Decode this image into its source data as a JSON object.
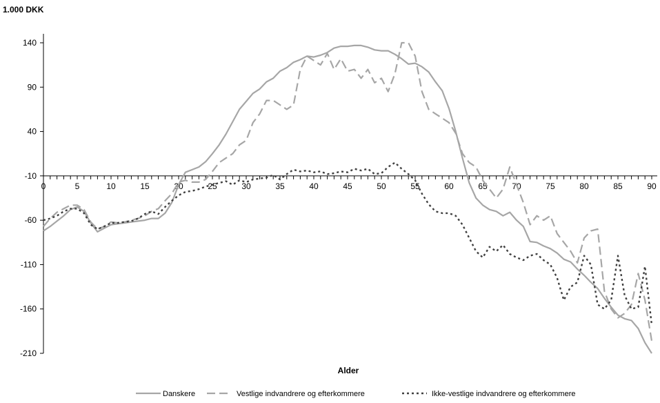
{
  "chart_data": {
    "type": "line",
    "unit_label": "1.000 DKK",
    "xlabel": "Alder",
    "ylabel": "",
    "xlim": [
      0,
      90
    ],
    "ylim": [
      -210,
      160
    ],
    "yticks": [
      140,
      90,
      40,
      -10,
      -60,
      -110,
      -160,
      -210
    ],
    "xticks": [
      0,
      5,
      10,
      15,
      20,
      25,
      30,
      35,
      40,
      45,
      50,
      55,
      60,
      65,
      70,
      75,
      80,
      85,
      90
    ],
    "xtick_labels": [
      "0",
      "5",
      "10",
      "15",
      "20",
      "25",
      "30",
      "35",
      "40",
      "45",
      "50",
      "55",
      "60",
      "65",
      "70",
      "75",
      "80",
      "85",
      "90"
    ],
    "ytick_labels": [
      "140",
      "90",
      "40",
      "-10",
      "-60",
      "-110",
      "-160",
      "-210"
    ],
    "grid": false,
    "legend_position": "bottom",
    "series": [
      {
        "name": "Danskere",
        "color": "#a6a6a6",
        "dash": "solid",
        "points": [
          [
            0,
            -72
          ],
          [
            1,
            -67
          ],
          [
            2,
            -61
          ],
          [
            3,
            -55
          ],
          [
            4,
            -48
          ],
          [
            5,
            -45
          ],
          [
            6,
            -50
          ],
          [
            7,
            -63
          ],
          [
            8,
            -73
          ],
          [
            9,
            -69
          ],
          [
            10,
            -65
          ],
          [
            11,
            -64
          ],
          [
            12,
            -63
          ],
          [
            13,
            -62
          ],
          [
            14,
            -61
          ],
          [
            15,
            -60
          ],
          [
            16,
            -58
          ],
          [
            17,
            -58
          ],
          [
            18,
            -52
          ],
          [
            19,
            -40
          ],
          [
            20,
            -20
          ],
          [
            21,
            -6
          ],
          [
            22,
            -3
          ],
          [
            23,
            0
          ],
          [
            24,
            6
          ],
          [
            25,
            15
          ],
          [
            26,
            25
          ],
          [
            27,
            37
          ],
          [
            28,
            51
          ],
          [
            29,
            65
          ],
          [
            30,
            74
          ],
          [
            31,
            83
          ],
          [
            32,
            88
          ],
          [
            33,
            96
          ],
          [
            34,
            100
          ],
          [
            35,
            108
          ],
          [
            36,
            112
          ],
          [
            37,
            118
          ],
          [
            38,
            121
          ],
          [
            39,
            125
          ],
          [
            40,
            124
          ],
          [
            41,
            126
          ],
          [
            42,
            129
          ],
          [
            43,
            134
          ],
          [
            44,
            136
          ],
          [
            45,
            136
          ],
          [
            46,
            137
          ],
          [
            47,
            137
          ],
          [
            48,
            135
          ],
          [
            49,
            132
          ],
          [
            50,
            131
          ],
          [
            51,
            131
          ],
          [
            52,
            127
          ],
          [
            53,
            122
          ],
          [
            54,
            116
          ],
          [
            55,
            117
          ],
          [
            56,
            113
          ],
          [
            57,
            107
          ],
          [
            58,
            96
          ],
          [
            59,
            86
          ],
          [
            60,
            66
          ],
          [
            61,
            40
          ],
          [
            62,
            10
          ],
          [
            63,
            -18
          ],
          [
            64,
            -35
          ],
          [
            65,
            -43
          ],
          [
            66,
            -48
          ],
          [
            67,
            -50
          ],
          [
            68,
            -55
          ],
          [
            69,
            -51
          ],
          [
            70,
            -60
          ],
          [
            71,
            -67
          ],
          [
            72,
            -84
          ],
          [
            73,
            -85
          ],
          [
            74,
            -89
          ],
          [
            75,
            -92
          ],
          [
            76,
            -97
          ],
          [
            77,
            -104
          ],
          [
            78,
            -107
          ],
          [
            79,
            -115
          ],
          [
            80,
            -122
          ],
          [
            81,
            -130
          ],
          [
            82,
            -137
          ],
          [
            83,
            -148
          ],
          [
            84,
            -158
          ],
          [
            85,
            -167
          ],
          [
            86,
            -171
          ],
          [
            87,
            -173
          ],
          [
            88,
            -182
          ],
          [
            89,
            -198
          ],
          [
            90,
            -210
          ]
        ]
      },
      {
        "name": "Vestlige indvandrere og efterkommere",
        "color": "#a6a6a6",
        "dash": "long",
        "points": [
          [
            0,
            -67
          ],
          [
            1,
            -58
          ],
          [
            2,
            -51
          ],
          [
            3,
            -47
          ],
          [
            4,
            -43
          ],
          [
            5,
            -43
          ],
          [
            6,
            -48
          ],
          [
            7,
            -62
          ],
          [
            8,
            -70
          ],
          [
            9,
            -67
          ],
          [
            10,
            -62
          ],
          [
            11,
            -63
          ],
          [
            12,
            -62
          ],
          [
            13,
            -60
          ],
          [
            14,
            -58
          ],
          [
            15,
            -55
          ],
          [
            16,
            -50
          ],
          [
            17,
            -47
          ],
          [
            18,
            -38
          ],
          [
            19,
            -30
          ],
          [
            20,
            -17
          ],
          [
            21,
            -15
          ],
          [
            22,
            -17
          ],
          [
            23,
            -17
          ],
          [
            24,
            -14
          ],
          [
            25,
            -5
          ],
          [
            26,
            5
          ],
          [
            27,
            10
          ],
          [
            28,
            15
          ],
          [
            29,
            25
          ],
          [
            30,
            30
          ],
          [
            31,
            50
          ],
          [
            32,
            60
          ],
          [
            33,
            75
          ],
          [
            34,
            75
          ],
          [
            35,
            70
          ],
          [
            36,
            65
          ],
          [
            37,
            70
          ],
          [
            38,
            110
          ],
          [
            39,
            125
          ],
          [
            40,
            120
          ],
          [
            41,
            115
          ],
          [
            42,
            128
          ],
          [
            43,
            110
          ],
          [
            44,
            122
          ],
          [
            45,
            108
          ],
          [
            46,
            110
          ],
          [
            47,
            100
          ],
          [
            48,
            110
          ],
          [
            49,
            95
          ],
          [
            50,
            100
          ],
          [
            51,
            85
          ],
          [
            52,
            105
          ],
          [
            53,
            140
          ],
          [
            54,
            140
          ],
          [
            55,
            125
          ],
          [
            56,
            85
          ],
          [
            57,
            65
          ],
          [
            58,
            60
          ],
          [
            59,
            55
          ],
          [
            60,
            50
          ],
          [
            61,
            38
          ],
          [
            62,
            15
          ],
          [
            63,
            5
          ],
          [
            64,
            0
          ],
          [
            65,
            -15
          ],
          [
            66,
            -25
          ],
          [
            67,
            -35
          ],
          [
            68,
            -25
          ],
          [
            69,
            0
          ],
          [
            70,
            -20
          ],
          [
            71,
            -40
          ],
          [
            72,
            -65
          ],
          [
            73,
            -55
          ],
          [
            74,
            -60
          ],
          [
            75,
            -55
          ],
          [
            76,
            -75
          ],
          [
            77,
            -85
          ],
          [
            78,
            -95
          ],
          [
            79,
            -108
          ],
          [
            80,
            -80
          ],
          [
            81,
            -72
          ],
          [
            82,
            -70
          ],
          [
            83,
            -140
          ],
          [
            84,
            -160
          ],
          [
            85,
            -170
          ],
          [
            86,
            -165
          ],
          [
            87,
            -155
          ],
          [
            88,
            -120
          ],
          [
            89,
            -150
          ],
          [
            90,
            -196
          ]
        ]
      },
      {
        "name": "Ikke-vestlige indvandrere og efterkommere",
        "color": "#404040",
        "dash": "short",
        "points": [
          [
            0,
            -60
          ],
          [
            1,
            -58
          ],
          [
            2,
            -55
          ],
          [
            3,
            -50
          ],
          [
            4,
            -47
          ],
          [
            5,
            -47
          ],
          [
            6,
            -52
          ],
          [
            7,
            -65
          ],
          [
            8,
            -70
          ],
          [
            9,
            -67
          ],
          [
            10,
            -63
          ],
          [
            11,
            -63
          ],
          [
            12,
            -62
          ],
          [
            13,
            -61
          ],
          [
            14,
            -58
          ],
          [
            15,
            -53
          ],
          [
            16,
            -50
          ],
          [
            17,
            -53
          ],
          [
            18,
            -45
          ],
          [
            19,
            -38
          ],
          [
            20,
            -32
          ],
          [
            21,
            -28
          ],
          [
            22,
            -27
          ],
          [
            23,
            -25
          ],
          [
            24,
            -22
          ],
          [
            25,
            -20
          ],
          [
            26,
            -18
          ],
          [
            27,
            -16
          ],
          [
            28,
            -20
          ],
          [
            29,
            -15
          ],
          [
            30,
            -17
          ],
          [
            31,
            -14
          ],
          [
            32,
            -13
          ],
          [
            33,
            -12
          ],
          [
            34,
            -9
          ],
          [
            35,
            -14
          ],
          [
            36,
            -8
          ],
          [
            37,
            -3
          ],
          [
            38,
            -5
          ],
          [
            39,
            -4
          ],
          [
            40,
            -6
          ],
          [
            41,
            -5
          ],
          [
            42,
            -8
          ],
          [
            43,
            -7
          ],
          [
            44,
            -5
          ],
          [
            45,
            -6
          ],
          [
            46,
            -2
          ],
          [
            47,
            -4
          ],
          [
            48,
            -2
          ],
          [
            49,
            -8
          ],
          [
            50,
            -7
          ],
          [
            51,
            0
          ],
          [
            52,
            5
          ],
          [
            53,
            -2
          ],
          [
            54,
            -8
          ],
          [
            55,
            -15
          ],
          [
            56,
            -30
          ],
          [
            57,
            -42
          ],
          [
            58,
            -50
          ],
          [
            59,
            -52
          ],
          [
            60,
            -52
          ],
          [
            61,
            -55
          ],
          [
            62,
            -65
          ],
          [
            63,
            -80
          ],
          [
            64,
            -95
          ],
          [
            65,
            -102
          ],
          [
            66,
            -90
          ],
          [
            67,
            -95
          ],
          [
            68,
            -88
          ],
          [
            69,
            -98
          ],
          [
            70,
            -102
          ],
          [
            71,
            -105
          ],
          [
            72,
            -100
          ],
          [
            73,
            -98
          ],
          [
            74,
            -105
          ],
          [
            75,
            -110
          ],
          [
            76,
            -125
          ],
          [
            77,
            -150
          ],
          [
            78,
            -135
          ],
          [
            79,
            -130
          ],
          [
            80,
            -100
          ],
          [
            81,
            -110
          ],
          [
            82,
            -155
          ],
          [
            83,
            -160
          ],
          [
            84,
            -150
          ],
          [
            85,
            -100
          ],
          [
            86,
            -145
          ],
          [
            87,
            -160
          ],
          [
            88,
            -158
          ],
          [
            89,
            -112
          ],
          [
            90,
            -178
          ]
        ]
      }
    ]
  }
}
